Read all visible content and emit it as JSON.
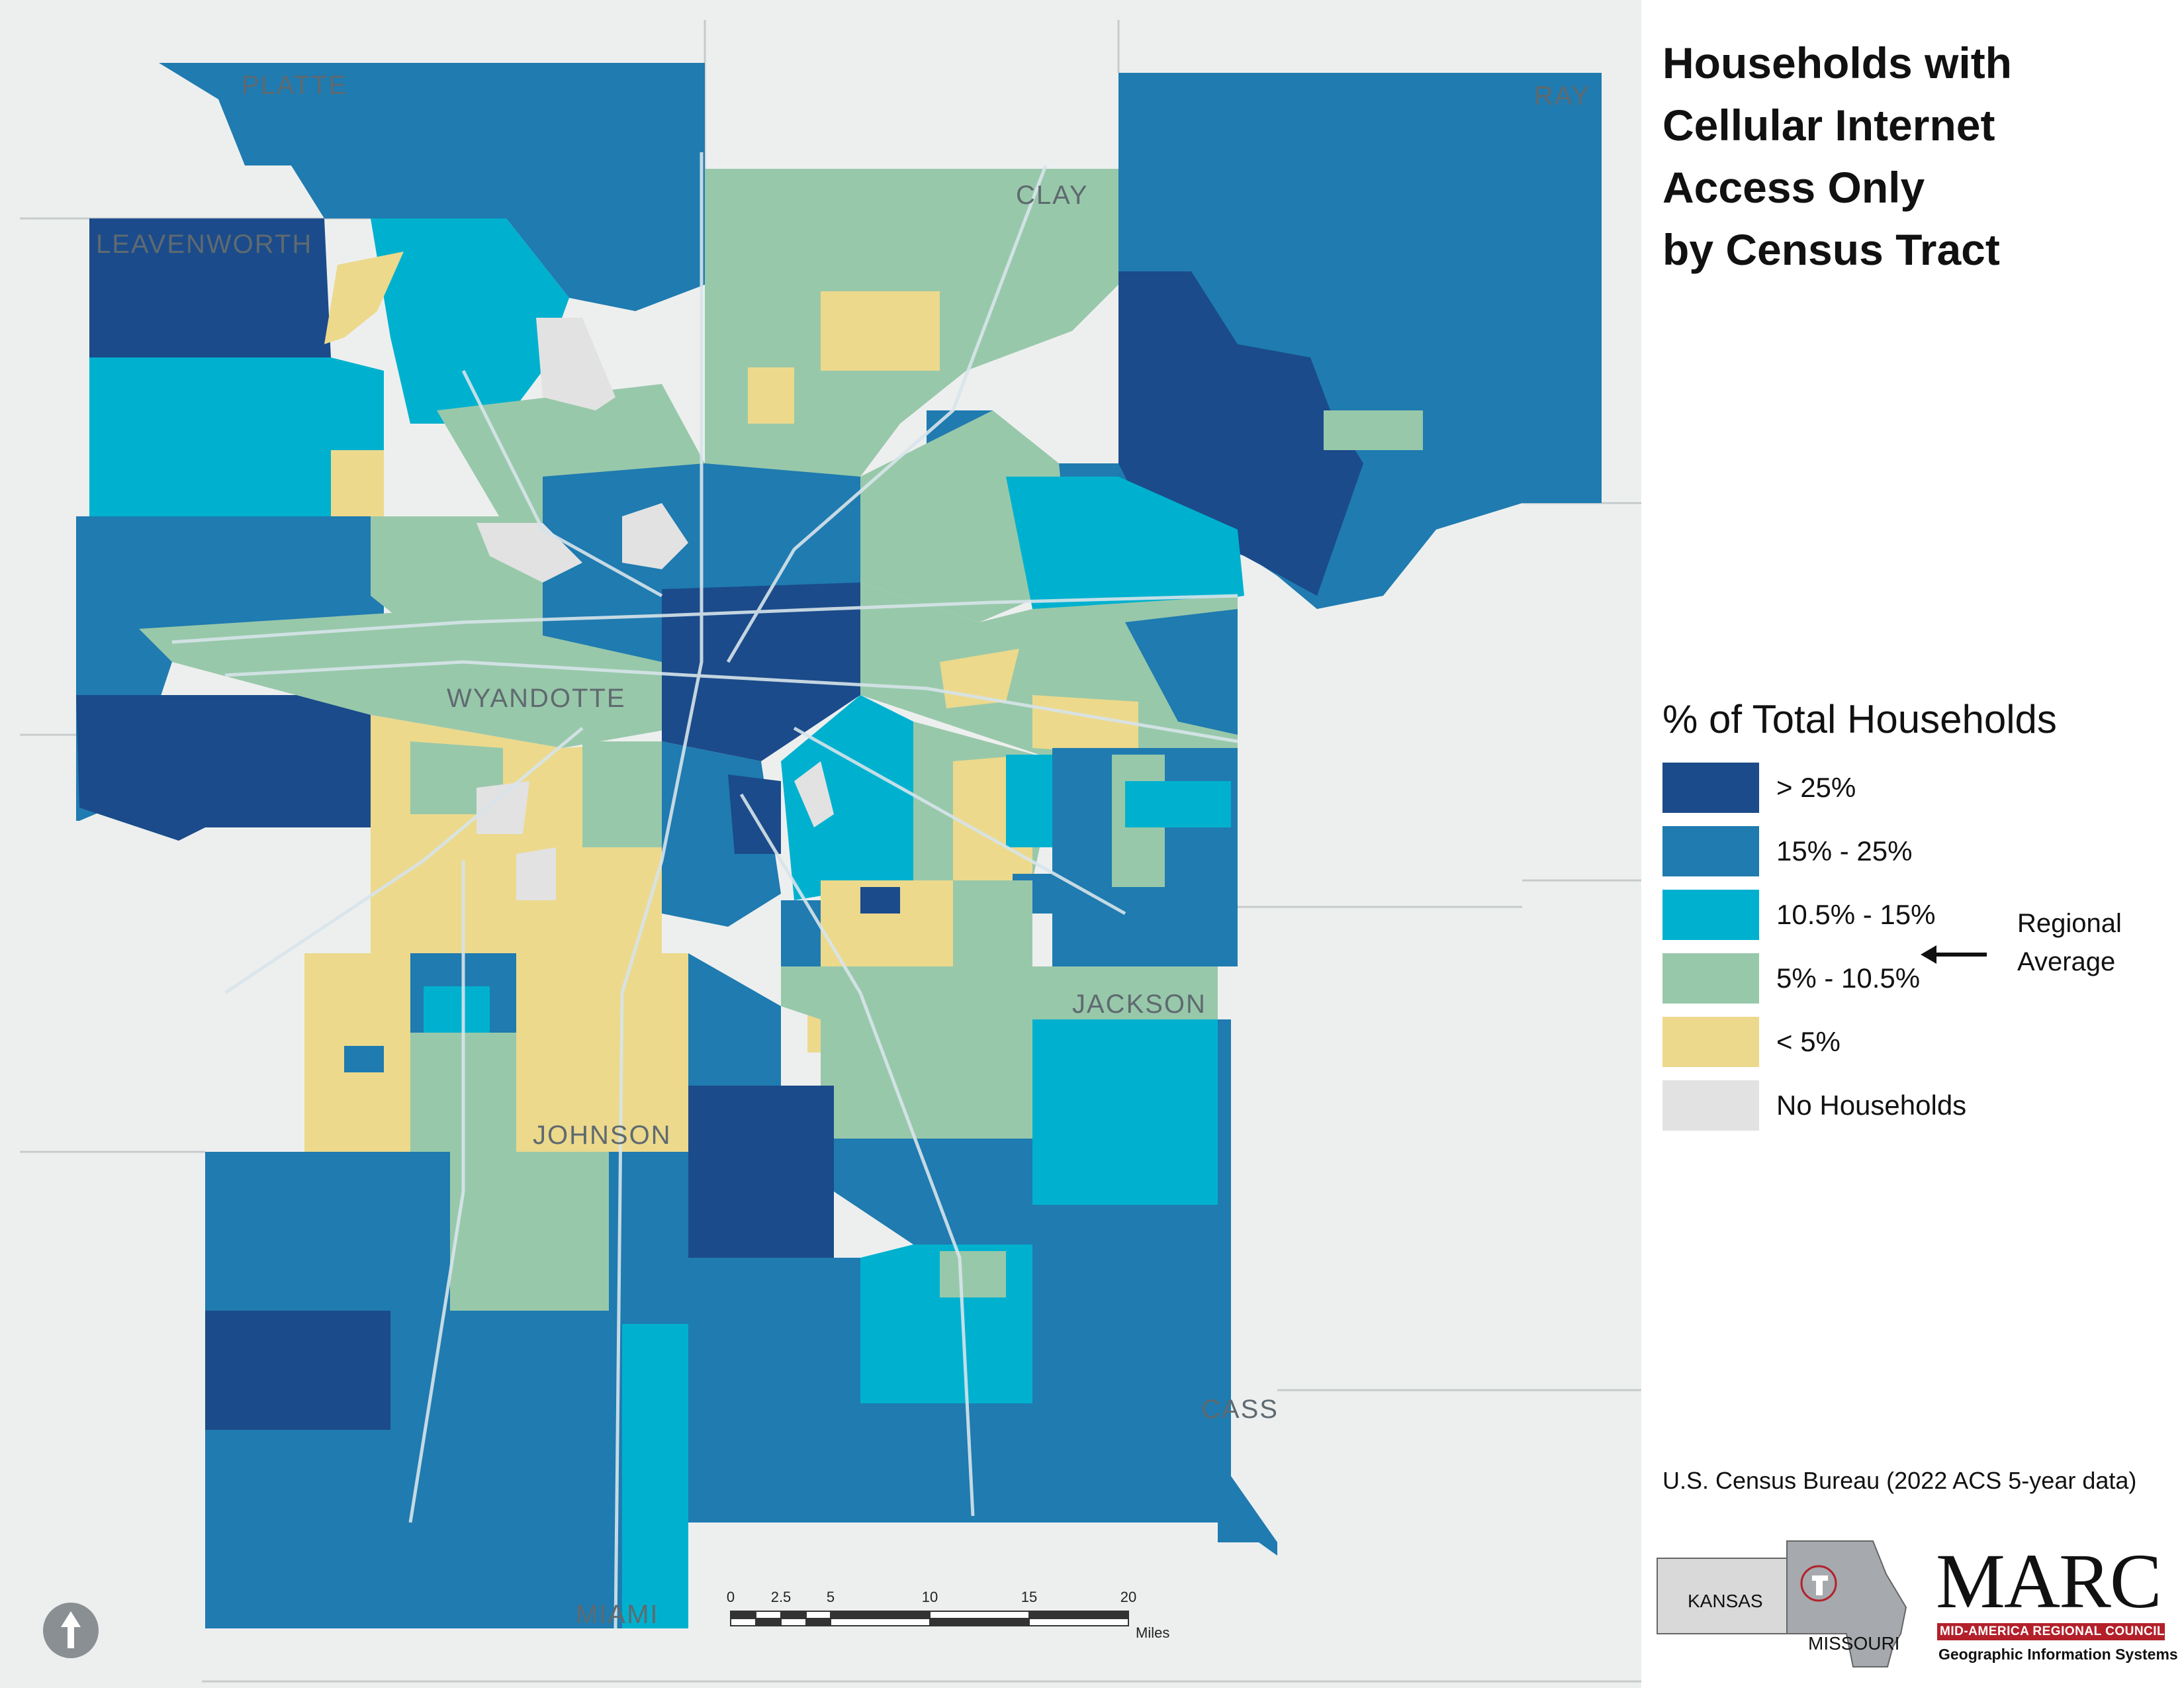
{
  "title_lines": [
    "Households with",
    "Cellular Internet",
    "Access Only",
    "by Census Tract"
  ],
  "legend": {
    "title": "% of Total Households",
    "items": [
      {
        "label": "> 25%",
        "color": "#1b4b8a"
      },
      {
        "label": "15% - 25%",
        "color": "#1f7bb0"
      },
      {
        "label": "10.5% - 15%",
        "color": "#00b1cf"
      },
      {
        "label": "5% - 10.5%",
        "color": "#98c8aa"
      },
      {
        "label": "< 5%",
        "color": "#ecd98c"
      },
      {
        "label": "No Households",
        "color": "#e2e2e2"
      }
    ],
    "regional_average_lines": [
      "Regional",
      "Average"
    ]
  },
  "counties": {
    "platte": "PLATTE",
    "clay": "CLAY",
    "ray": "RAY",
    "leavenworth": "LEAVENWORTH",
    "wyandotte": "WYANDOTTE",
    "jackson": "JACKSON",
    "johnson": "JOHNSON",
    "cass": "CASS",
    "miami": "MIAMI"
  },
  "source": "U.S. Census Bureau (2022 ACS 5-year data)",
  "inset": {
    "kansas": "KANSAS",
    "missouri": "MISSOURI"
  },
  "logo": {
    "name": "MARC",
    "line1": "MID-AMERICA REGIONAL COUNCIL",
    "line2": "Geographic Information Systems"
  },
  "scale": {
    "ticks": [
      "0",
      "2.5",
      "5",
      "10",
      "15",
      "20"
    ],
    "units": "Miles"
  },
  "colors": {
    "background": "#edefef",
    "county_border": "#c8cbcc",
    "roads": "#d7e4ea"
  }
}
